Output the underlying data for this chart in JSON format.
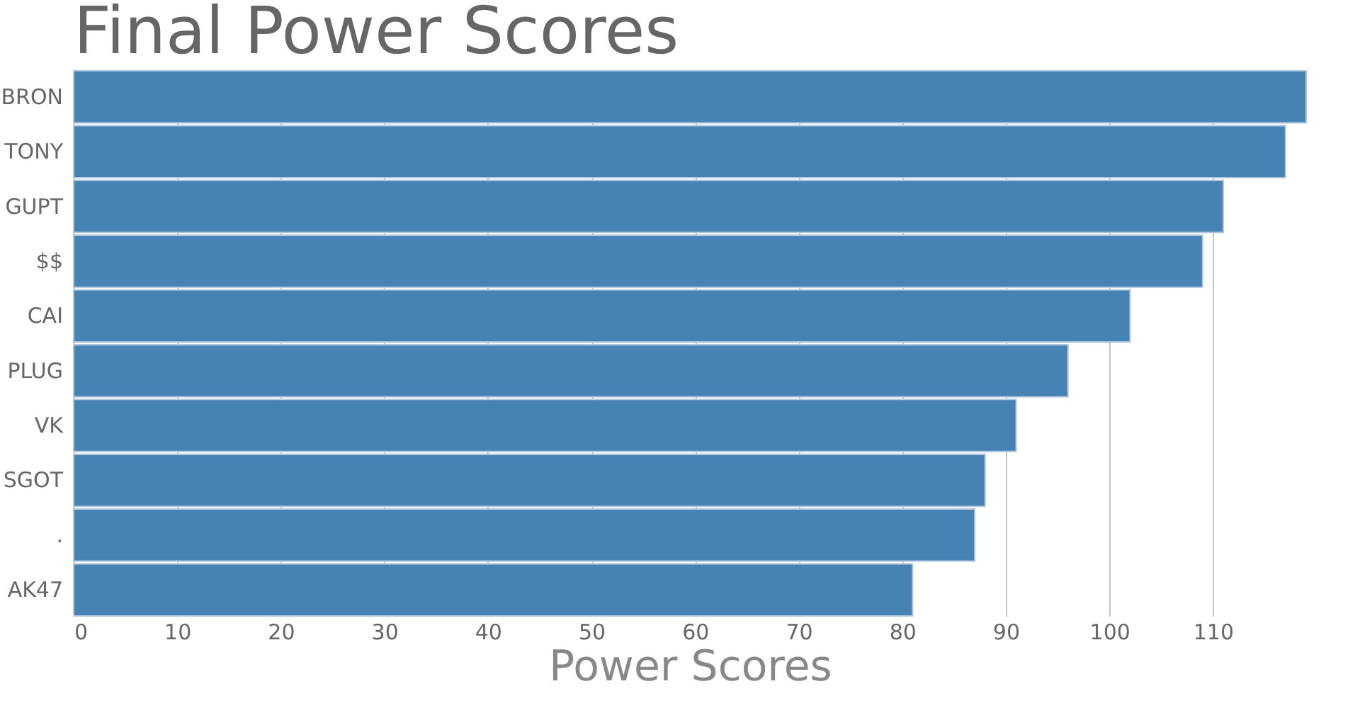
{
  "chart_data": {
    "type": "bar",
    "orientation": "horizontal",
    "title": "Final Power Scores",
    "xlabel": "Power Scores",
    "categories": [
      "BRON",
      "TONY",
      "GUPT",
      "$$",
      "CAI",
      "PLUG",
      "VK",
      "SGOT",
      ".",
      "AK47"
    ],
    "values": [
      119,
      117,
      111,
      109,
      102,
      96,
      91,
      88,
      87,
      81
    ],
    "color": "#4682b4",
    "xlim": [
      0,
      119
    ],
    "xticks": [
      0,
      10,
      20,
      30,
      40,
      50,
      60,
      70,
      80,
      90,
      100,
      110
    ],
    "grid": "x"
  }
}
